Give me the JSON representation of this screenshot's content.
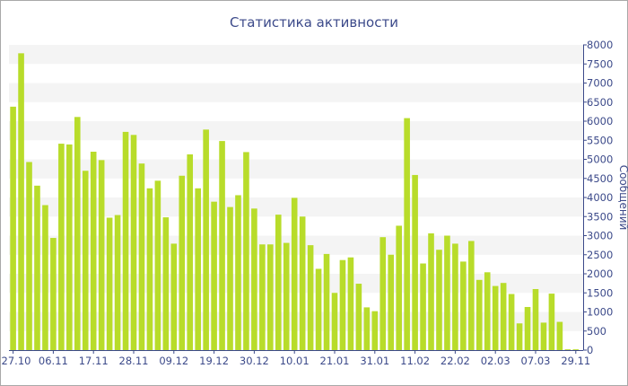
{
  "chart_data": {
    "type": "bar",
    "title": "Статистика активности",
    "xlabel": "",
    "ylabel": "Сообщений",
    "ylim": [
      0,
      8000
    ],
    "y_ticks": [
      0,
      500,
      1000,
      1500,
      2000,
      2500,
      3000,
      3500,
      4000,
      4500,
      5000,
      5500,
      6000,
      6500,
      7000,
      7500,
      8000
    ],
    "x_tick_labels": [
      {
        "index": 0,
        "label": "27.10"
      },
      {
        "index": 5,
        "label": "06.11"
      },
      {
        "index": 10,
        "label": "17.11"
      },
      {
        "index": 15,
        "label": "28.11"
      },
      {
        "index": 20,
        "label": "09.12"
      },
      {
        "index": 25,
        "label": "19.12"
      },
      {
        "index": 30,
        "label": "30.12"
      },
      {
        "index": 35,
        "label": "10.01"
      },
      {
        "index": 40,
        "label": "21.01"
      },
      {
        "index": 45,
        "label": "31.01"
      },
      {
        "index": 50,
        "label": "11.02"
      },
      {
        "index": 55,
        "label": "22.02"
      },
      {
        "index": 60,
        "label": "02.03"
      },
      {
        "index": 65,
        "label": "07.03"
      },
      {
        "index": 70,
        "label": "29.11"
      }
    ],
    "grid": "horizontal bands",
    "bar_color": "#b8dc2a",
    "values": [
      6380,
      7780,
      4930,
      4310,
      3800,
      2940,
      5410,
      5390,
      6110,
      4700,
      5200,
      4980,
      3470,
      3540,
      5720,
      5640,
      4890,
      4240,
      4440,
      3480,
      2790,
      4570,
      5130,
      4240,
      5780,
      3890,
      5480,
      3750,
      4060,
      5190,
      3710,
      2770,
      2770,
      3550,
      2810,
      3990,
      3500,
      2750,
      2130,
      2520,
      1500,
      2360,
      2430,
      1740,
      1120,
      1020,
      2960,
      2500,
      3260,
      6080,
      4590,
      2270,
      3060,
      2630,
      3000,
      2790,
      2320,
      2860,
      1840,
      2040,
      1680,
      1760,
      1470,
      700,
      1130,
      1600,
      720,
      1480,
      740,
      20,
      20
    ]
  }
}
